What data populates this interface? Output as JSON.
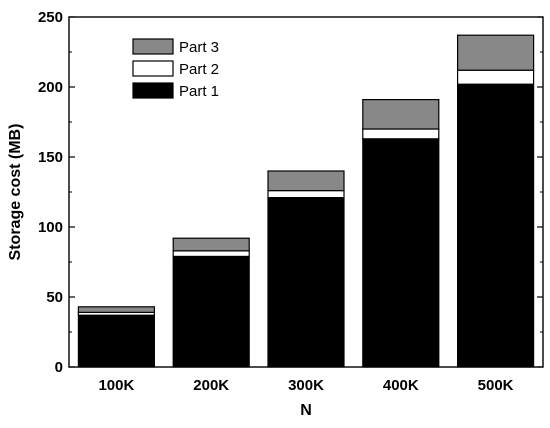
{
  "chart_data": {
    "type": "bar",
    "stacked": true,
    "categories": [
      "100K",
      "200K",
      "300K",
      "400K",
      "500K"
    ],
    "series": [
      {
        "name": "Part 1",
        "color": "#000000",
        "values": [
          37,
          79,
          121,
          163,
          202
        ]
      },
      {
        "name": "Part 2",
        "color": "#ffffff",
        "values": [
          2,
          4,
          5,
          7,
          10
        ]
      },
      {
        "name": "Part 3",
        "color": "#888888",
        "values": [
          4,
          9,
          14,
          21,
          25
        ]
      }
    ],
    "xlabel": "N",
    "ylabel": "Storage cost (MB)",
    "ylim": [
      0,
      250
    ],
    "yticks": [
      0,
      50,
      100,
      150,
      200,
      250
    ],
    "grid": false,
    "legend_position": "top-left",
    "legend_order": [
      "Part 3",
      "Part 2",
      "Part 1"
    ]
  }
}
